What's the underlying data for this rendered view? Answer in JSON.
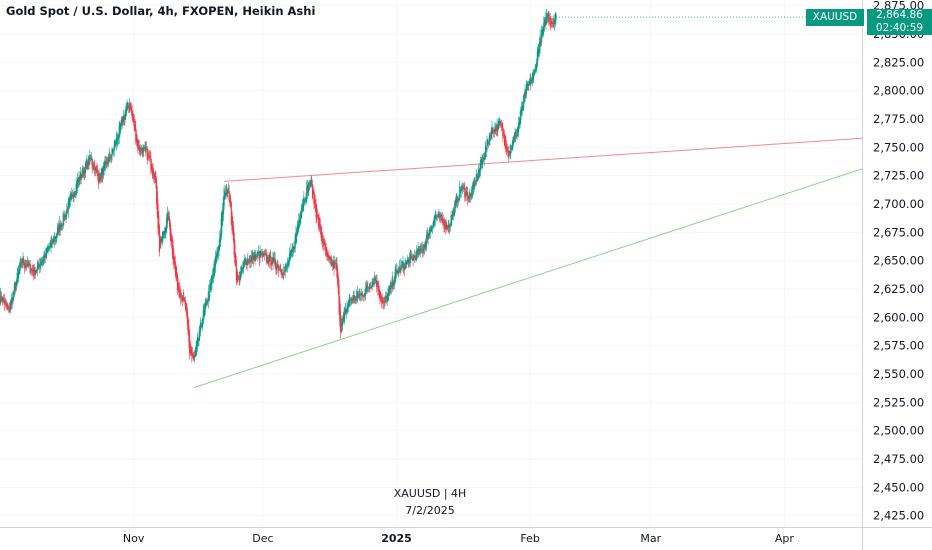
{
  "header": {
    "title": "Gold Spot / U.S. Dollar, 4h, FXOPEN, Heikin Ashi"
  },
  "watermark": {
    "symbol_line": "XAUUSD | 4H",
    "date_line": "7/2/2025"
  },
  "price_tag": {
    "symbol": "XAUUSD",
    "price": "2,864.86",
    "countdown": "02:40:59"
  },
  "colors": {
    "up": "#089981",
    "down": "#f23645",
    "resistance_line": "#f28b8b",
    "support_line": "#8fd18a",
    "axis_text": "#131722",
    "grid": "#e9ecf1",
    "tag_bg": "#089981"
  },
  "chart_data": {
    "type": "candlestick",
    "style": "Heikin Ashi",
    "symbol": "XAUUSD",
    "interval": "4h",
    "y_axis": {
      "ticks": [
        "2,425.00",
        "2,450.00",
        "2,475.00",
        "2,500.00",
        "2,525.00",
        "2,550.00",
        "2,575.00",
        "2,600.00",
        "2,625.00",
        "2,650.00",
        "2,675.00",
        "2,700.00",
        "2,725.00",
        "2,750.00",
        "2,775.00",
        "2,800.00",
        "2,825.00",
        "2,850.00",
        "2,875.00"
      ],
      "range": [
        2415,
        2880
      ],
      "position": "right"
    },
    "x_axis": {
      "ticks": [
        {
          "label": "Nov",
          "date": "2024-11-01",
          "bold": false
        },
        {
          "label": "Dec",
          "date": "2024-12-01",
          "bold": false
        },
        {
          "label": "2025",
          "date": "2025-01-01",
          "bold": true
        },
        {
          "label": "Feb",
          "date": "2025-02-01",
          "bold": false
        },
        {
          "label": "Mar",
          "date": "2025-03-01",
          "bold": false
        },
        {
          "label": "Apr",
          "date": "2025-04-01",
          "bold": false
        }
      ],
      "range": [
        "2024-10-01",
        "2025-04-19"
      ]
    },
    "price_path": [
      [
        "2024-10-01",
        2620
      ],
      [
        "2024-10-03",
        2605
      ],
      [
        "2024-10-06",
        2650
      ],
      [
        "2024-10-09",
        2640
      ],
      [
        "2024-10-13",
        2665
      ],
      [
        "2024-10-16",
        2690
      ],
      [
        "2024-10-19",
        2720
      ],
      [
        "2024-10-22",
        2740
      ],
      [
        "2024-10-24",
        2722
      ],
      [
        "2024-10-27",
        2745
      ],
      [
        "2024-10-30",
        2780
      ],
      [
        "2024-10-31",
        2790
      ],
      [
        "2024-11-02",
        2750
      ],
      [
        "2024-11-04",
        2745
      ],
      [
        "2024-11-06",
        2725
      ],
      [
        "2024-11-07",
        2660
      ],
      [
        "2024-11-09",
        2690
      ],
      [
        "2024-11-11",
        2630
      ],
      [
        "2024-11-13",
        2610
      ],
      [
        "2024-11-14",
        2570
      ],
      [
        "2024-11-15",
        2562
      ],
      [
        "2024-11-17",
        2600
      ],
      [
        "2024-11-19",
        2630
      ],
      [
        "2024-11-21",
        2670
      ],
      [
        "2024-11-22",
        2710
      ],
      [
        "2024-11-23",
        2715
      ],
      [
        "2024-11-25",
        2630
      ],
      [
        "2024-11-27",
        2650
      ],
      [
        "2024-11-30",
        2655
      ],
      [
        "2024-12-03",
        2650
      ],
      [
        "2024-12-06",
        2640
      ],
      [
        "2024-12-08",
        2660
      ],
      [
        "2024-12-10",
        2700
      ],
      [
        "2024-12-12",
        2720
      ],
      [
        "2024-12-14",
        2680
      ],
      [
        "2024-12-16",
        2650
      ],
      [
        "2024-12-18",
        2645
      ],
      [
        "2024-12-19",
        2590
      ],
      [
        "2024-12-21",
        2615
      ],
      [
        "2024-12-24",
        2620
      ],
      [
        "2024-12-27",
        2635
      ],
      [
        "2024-12-29",
        2610
      ],
      [
        "2025-01-01",
        2640
      ],
      [
        "2025-01-04",
        2650
      ],
      [
        "2025-01-07",
        2660
      ],
      [
        "2025-01-10",
        2690
      ],
      [
        "2025-01-13",
        2680
      ],
      [
        "2025-01-16",
        2715
      ],
      [
        "2025-01-18",
        2705
      ],
      [
        "2025-01-21",
        2740
      ],
      [
        "2025-01-23",
        2765
      ],
      [
        "2025-01-25",
        2770
      ],
      [
        "2025-01-27",
        2745
      ],
      [
        "2025-01-29",
        2765
      ],
      [
        "2025-01-31",
        2800
      ],
      [
        "2025-02-02",
        2815
      ],
      [
        "2025-02-03",
        2840
      ],
      [
        "2025-02-05",
        2868
      ],
      [
        "2025-02-06",
        2860
      ],
      [
        "2025-02-07",
        2864.86
      ]
    ],
    "trendlines": [
      {
        "role": "resistance",
        "color": "#f28b8b",
        "from": [
          "2024-11-22",
          2720
        ],
        "to": [
          "2025-04-19",
          2758
        ]
      },
      {
        "role": "support",
        "color": "#8fd18a",
        "from": [
          "2024-11-15",
          2538
        ],
        "to": [
          "2025-04-19",
          2731
        ]
      }
    ],
    "last_price": 2864.86
  }
}
